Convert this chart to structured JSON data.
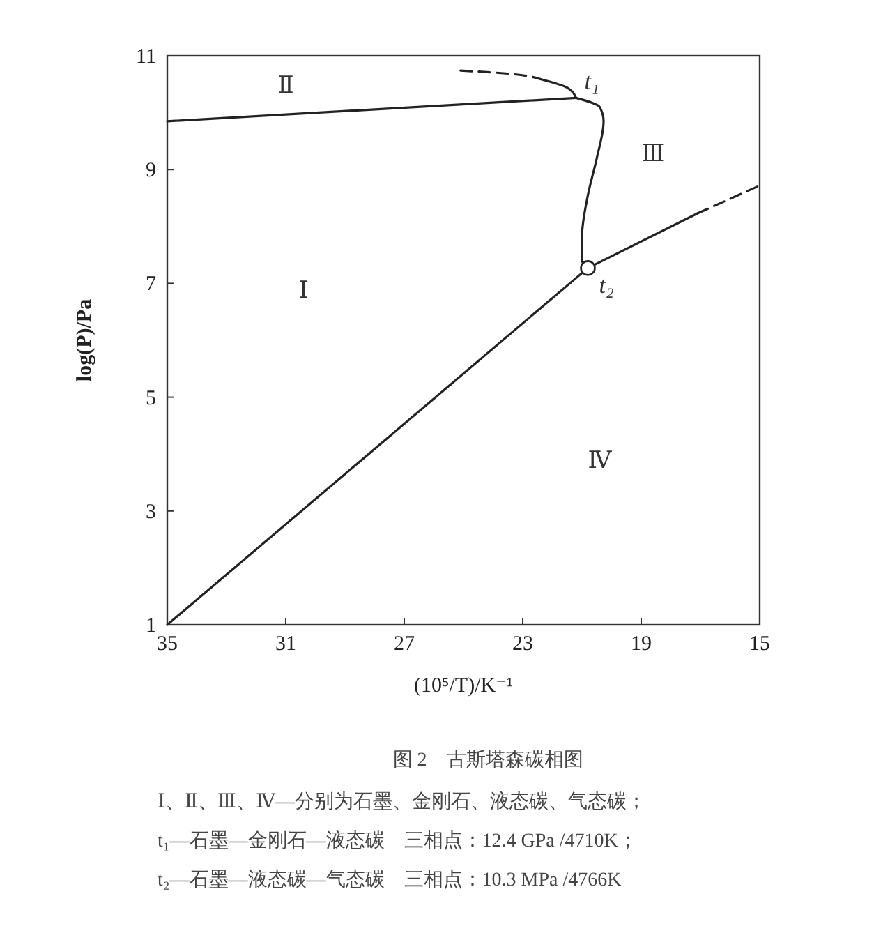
{
  "chart_data": {
    "type": "line",
    "title": "图 2　古斯塔森碳相图",
    "xlabel": "(10⁵/T)/K⁻¹",
    "ylabel": "log(P)/Pa",
    "xlim": [
      35,
      15
    ],
    "xticks": [
      35,
      31,
      27,
      23,
      19,
      15
    ],
    "ylim": [
      1,
      11
    ],
    "yticks": [
      1,
      3,
      5,
      7,
      9,
      11
    ],
    "grid": false,
    "marker": "none",
    "series": [
      {
        "color": "#222222",
        "line_style": "solid",
        "x": [
          35,
          21.2
        ],
        "values": [
          9.85,
          10.26
        ]
      },
      {
        "color": "#222222",
        "line_style": "solid",
        "x": [
          22.4,
          21.5,
          21.2
        ],
        "values": [
          10.59,
          10.44,
          10.26
        ]
      },
      {
        "color": "#222222",
        "line_style": "dashed",
        "x": [
          25.1,
          23.8,
          22.4
        ],
        "values": [
          10.74,
          10.7,
          10.59
        ]
      },
      {
        "color": "#222222",
        "line_style": "solid",
        "x": [
          21.2,
          20.4,
          20.27,
          20.5,
          20.8,
          21.0,
          21.0,
          20.8
        ],
        "values": [
          10.26,
          10.1,
          9.85,
          9.2,
          8.55,
          7.81,
          7.4,
          7.27
        ]
      },
      {
        "color": "#222222",
        "line_style": "solid",
        "x": [
          35,
          20.8
        ],
        "values": [
          1,
          7.27
        ]
      },
      {
        "color": "#222222",
        "line_style": "solid",
        "x": [
          20.8,
          17.1
        ],
        "values": [
          7.27,
          8.23
        ]
      },
      {
        "color": "#222222",
        "line_style": "dashed",
        "x": [
          17.1,
          15
        ],
        "values": [
          8.23,
          8.72
        ]
      },
      {
        "type": "scatter",
        "marker": "circle",
        "color": "#222222",
        "x": [
          20.8
        ],
        "values": [
          7.27
        ]
      }
    ],
    "annotations": [
      "Ⅰ",
      "Ⅱ",
      "Ⅲ",
      "Ⅳ",
      {
        "text": "t₁",
        "x": 21.2,
        "y": 10.26
      },
      {
        "text": "t₂",
        "x": 20.8,
        "y": 7.27
      },
      "Ⅰ、Ⅱ、Ⅲ、Ⅳ—分别为石墨、金刚石、液态碳、气态碳；",
      "t₁—石墨—金刚石—液态碳　三相点：12.4 GPa /4710K；",
      "t₂—石墨—液态碳—气态碳　三相点：10.3 MPa /4766K"
    ]
  }
}
